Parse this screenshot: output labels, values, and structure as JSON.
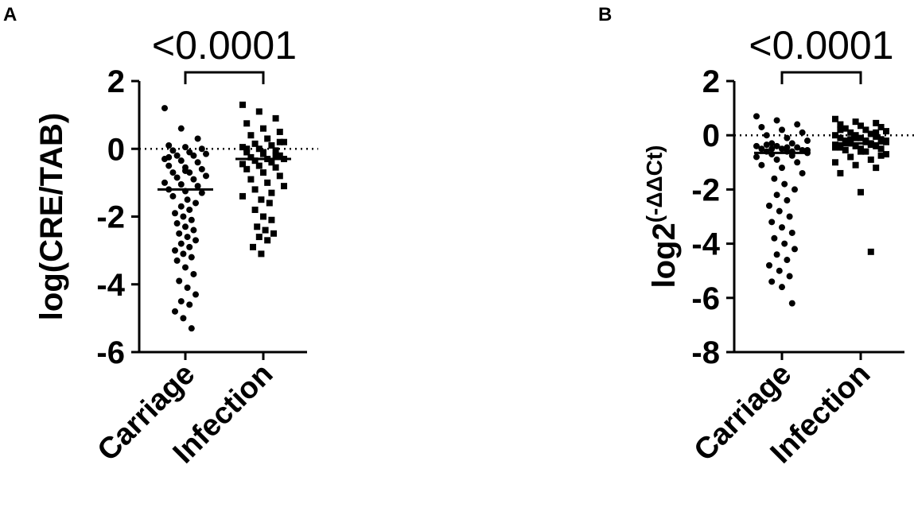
{
  "chart_data": [
    {
      "type": "strip",
      "panel": "A",
      "title": "<0.0001",
      "ylabel": "log(CRE/TAB)",
      "categories": [
        "Carriage",
        "Infection"
      ],
      "markers": [
        "circle",
        "square"
      ],
      "color": "#000000",
      "ylim": [
        -6,
        2
      ],
      "yticks": [
        2,
        0,
        -2,
        -4,
        -6
      ],
      "reference_line": 0,
      "medians": [
        -1.2,
        -0.3
      ],
      "values": [
        [
          1.2,
          0.6,
          0.3,
          0.1,
          0.05,
          0,
          -0.05,
          -0.1,
          -0.15,
          -0.2,
          -0.2,
          -0.3,
          -0.35,
          -0.4,
          -0.5,
          -0.55,
          -0.6,
          -0.7,
          -0.7,
          -0.8,
          -0.85,
          -0.9,
          -1.0,
          -1.05,
          -1.1,
          -1.2,
          -1.25,
          -1.3,
          -1.4,
          -1.5,
          -1.6,
          -1.7,
          -1.8,
          -1.9,
          -2.0,
          -2.1,
          -2.2,
          -2.3,
          -2.4,
          -2.5,
          -2.6,
          -2.7,
          -2.8,
          -2.9,
          -3.0,
          -3.1,
          -3.2,
          -3.3,
          -3.5,
          -3.7,
          -3.9,
          -4.1,
          -4.3,
          -4.5,
          -4.6,
          -4.8,
          -5.0,
          -5.3,
          -0.25,
          -0.65
        ],
        [
          1.3,
          1.1,
          0.9,
          0.75,
          0.6,
          0.5,
          0.4,
          0.3,
          0.2,
          0.15,
          0.1,
          0.05,
          0,
          -0.05,
          -0.1,
          -0.15,
          -0.2,
          -0.25,
          -0.3,
          -0.3,
          -0.35,
          -0.4,
          -0.45,
          -0.5,
          -0.55,
          -0.6,
          -0.7,
          -0.8,
          -0.9,
          -1.0,
          -1.1,
          -1.2,
          -1.3,
          -1.4,
          -1.5,
          -1.6,
          -1.8,
          -2.0,
          -2.1,
          -2.3,
          -2.4,
          -2.5,
          -2.6,
          -2.7,
          -2.9,
          -3.1,
          -0.2,
          0.0,
          -0.1,
          0.2
        ]
      ]
    },
    {
      "type": "strip",
      "panel": "B",
      "title": "<0.0001",
      "ylabel": "log2",
      "ylabel_sup": "(-ΔΔCt)",
      "categories": [
        "Carriage",
        "Infection"
      ],
      "markers": [
        "circle",
        "square"
      ],
      "color": "#000000",
      "ylim": [
        -8,
        2
      ],
      "yticks": [
        2,
        0,
        -2,
        -4,
        -6,
        -8
      ],
      "reference_line": 0,
      "medians": [
        -0.65,
        -0.3
      ],
      "values": [
        [
          0.7,
          0.55,
          0.4,
          0.3,
          0.2,
          0.1,
          0,
          -0.1,
          -0.2,
          -0.3,
          -0.3,
          -0.4,
          -0.4,
          -0.45,
          -0.5,
          -0.5,
          -0.55,
          -0.6,
          -0.6,
          -0.65,
          -0.7,
          -0.75,
          -0.8,
          -0.9,
          -1.0,
          -1.1,
          -1.2,
          -1.4,
          -1.6,
          -1.8,
          -2.0,
          -2.2,
          -2.4,
          -2.6,
          -2.8,
          -3.0,
          -3.2,
          -3.4,
          -3.6,
          -3.8,
          -4.0,
          -4.2,
          -4.4,
          -4.6,
          -4.8,
          -5.0,
          -5.2,
          -5.4,
          -5.6,
          -6.2,
          -0.35,
          -0.45,
          -0.55,
          -0.5,
          -0.6
        ],
        [
          0.6,
          0.5,
          0.45,
          0.4,
          0.35,
          0.3,
          0.25,
          0.2,
          0.15,
          0.1,
          0.05,
          0,
          0,
          -0.05,
          -0.1,
          -0.1,
          -0.15,
          -0.2,
          -0.2,
          -0.25,
          -0.3,
          -0.3,
          -0.35,
          -0.4,
          -0.4,
          -0.45,
          -0.5,
          -0.5,
          -0.55,
          -0.6,
          -0.7,
          -0.8,
          -0.9,
          -1.0,
          -1.1,
          -1.2,
          -1.4,
          -2.1,
          -4.3,
          -0.3,
          -0.25,
          -0.2,
          -0.15,
          -0.35,
          -0.45,
          -0.1,
          0.1,
          0.2,
          -0.6,
          -0.75
        ]
      ]
    }
  ]
}
